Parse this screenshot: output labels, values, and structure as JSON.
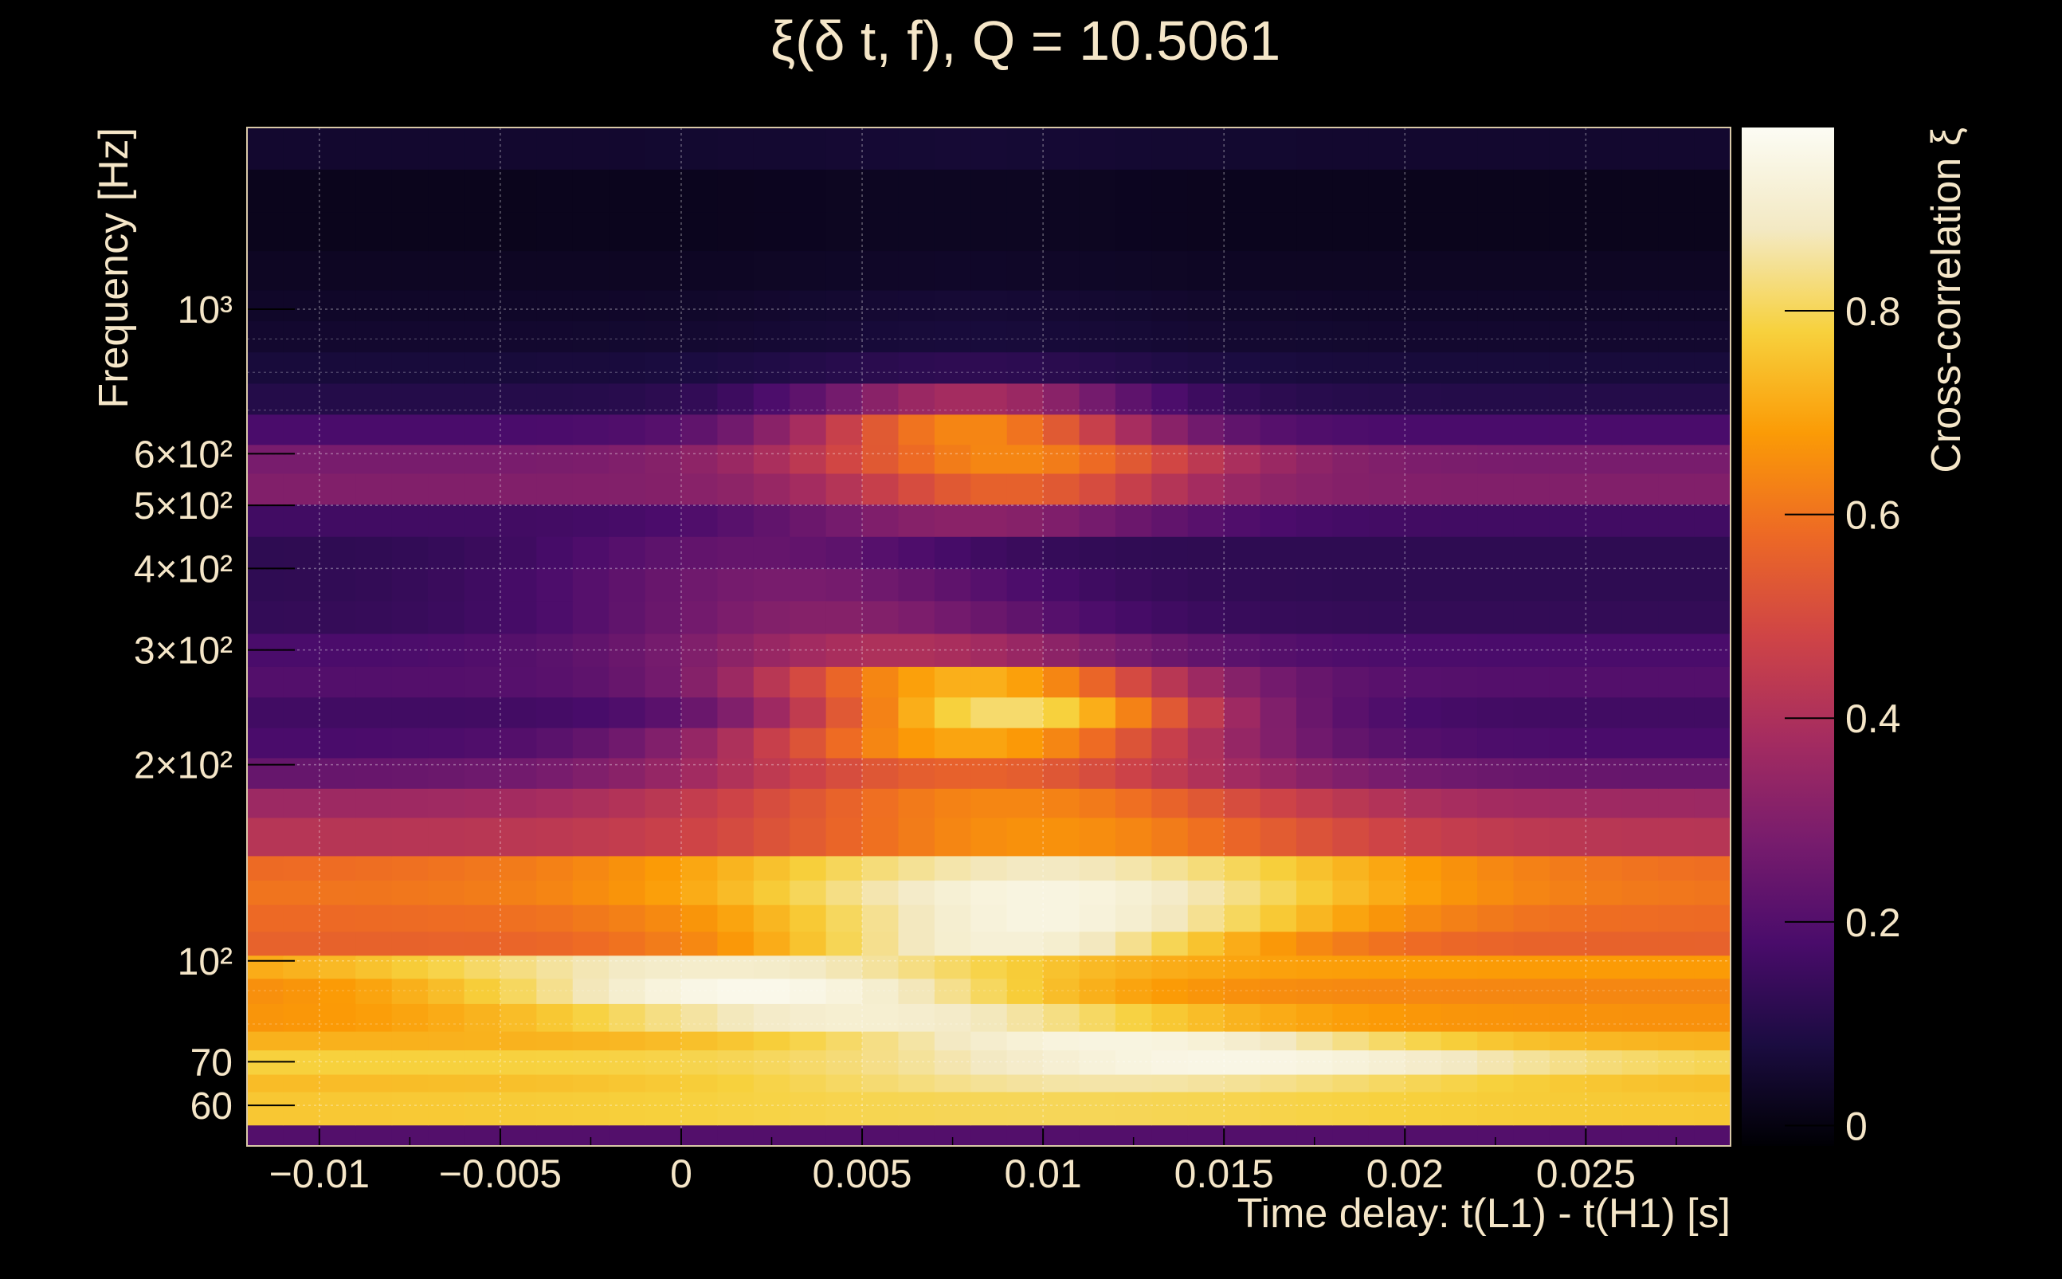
{
  "chart_data": {
    "type": "heatmap",
    "title": "ξ(δ t, f), Q = 10.5061",
    "xlabel": "Time delay: t(L1) - t(H1) [s]",
    "ylabel": "Frequency [Hz]",
    "colorbar_label": "Cross-correlation ξ",
    "xlim": [
      -0.012,
      0.029
    ],
    "ylim": [
      52,
      1900
    ],
    "y_scale": "log",
    "grid": true,
    "colormap": [
      "#000004",
      "#1b0c41",
      "#4a0c6b",
      "#781c6d",
      "#a52c60",
      "#cf4446",
      "#ed6925",
      "#fb9b06",
      "#f7d13d",
      "#f3e9c3",
      "#fcfcf4"
    ],
    "x_ticks": [
      {
        "value": -0.01,
        "label": "−0.01"
      },
      {
        "value": -0.005,
        "label": "−0.005"
      },
      {
        "value": 0,
        "label": "0"
      },
      {
        "value": 0.005,
        "label": "0.005"
      },
      {
        "value": 0.01,
        "label": "0.01"
      },
      {
        "value": 0.015,
        "label": "0.015"
      },
      {
        "value": 0.02,
        "label": "0.02"
      },
      {
        "value": 0.025,
        "label": "0.025"
      }
    ],
    "y_ticks": [
      {
        "value": 60,
        "label": "60"
      },
      {
        "value": 70,
        "label": "70"
      },
      {
        "value": 100,
        "label": "10²"
      },
      {
        "value": 200,
        "label": "2×10²"
      },
      {
        "value": 300,
        "label": "3×10²"
      },
      {
        "value": 400,
        "label": "4×10²"
      },
      {
        "value": 500,
        "label": "5×10²"
      },
      {
        "value": 600,
        "label": "6×10²"
      },
      {
        "value": 1000,
        "label": "10³"
      }
    ],
    "colorbar_ticks": [
      {
        "value": 0,
        "label": "0"
      },
      {
        "value": 0.2,
        "label": "0.2"
      },
      {
        "value": 0.4,
        "label": "0.4"
      },
      {
        "value": 0.6,
        "label": "0.6"
      },
      {
        "value": 0.8,
        "label": "0.8"
      }
    ],
    "z_range": [
      -0.02,
      0.98
    ],
    "frequency_bands_hz": [
      [
        52,
        56
      ],
      [
        56,
        63
      ],
      [
        63,
        67
      ],
      [
        67,
        73
      ],
      [
        73,
        78
      ],
      [
        78,
        86
      ],
      [
        86,
        94
      ],
      [
        94,
        102
      ],
      [
        102,
        111
      ],
      [
        111,
        122
      ],
      [
        122,
        133
      ],
      [
        133,
        145
      ],
      [
        145,
        166
      ],
      [
        166,
        184
      ],
      [
        184,
        205
      ],
      [
        205,
        228
      ],
      [
        228,
        254
      ],
      [
        254,
        283
      ],
      [
        283,
        318
      ],
      [
        318,
        357
      ],
      [
        357,
        400
      ],
      [
        400,
        448
      ],
      [
        448,
        502
      ],
      [
        502,
        560
      ],
      [
        560,
        620
      ],
      [
        620,
        690
      ],
      [
        690,
        770
      ],
      [
        770,
        860
      ],
      [
        860,
        960
      ],
      [
        960,
        1070
      ],
      [
        1070,
        1230
      ],
      [
        1230,
        1410
      ],
      [
        1410,
        1640
      ],
      [
        1640,
        1900
      ]
    ],
    "band_models": [
      {
        "base": 0.2,
        "peak": 0,
        "t0": 0.01,
        "width": 0.01
      },
      {
        "base": 0.76,
        "peak": 0.04,
        "t0": 0.01,
        "width": 0.012
      },
      {
        "base": 0.74,
        "peak": 0.12,
        "t0": 0.012,
        "width": 0.01
      },
      {
        "base": 0.78,
        "peak": 0.17,
        "t0": 0.015,
        "width": 0.009
      },
      {
        "base": 0.72,
        "peak": 0.22,
        "t0": 0.012,
        "width": 0.008
      },
      {
        "base": 0.66,
        "peak": 0.25,
        "t0": 0.005,
        "width": 0.009
      },
      {
        "base": 0.64,
        "peak": 0.32,
        "t0": 0.002,
        "width": 0.008
      },
      {
        "base": 0.68,
        "peak": 0.22,
        "t0": 0.001,
        "width": 0.009
      },
      {
        "base": 0.56,
        "peak": 0.36,
        "t0": 0.009,
        "width": 0.007
      },
      {
        "base": 0.58,
        "peak": 0.36,
        "t0": 0.01,
        "width": 0.008
      },
      {
        "base": 0.6,
        "peak": 0.34,
        "t0": 0.01,
        "width": 0.009
      },
      {
        "base": 0.58,
        "peak": 0.3,
        "t0": 0.01,
        "width": 0.01
      },
      {
        "base": 0.42,
        "peak": 0.24,
        "t0": 0.01,
        "width": 0.008
      },
      {
        "base": 0.36,
        "peak": 0.28,
        "t0": 0.009,
        "width": 0.008
      },
      {
        "base": 0.24,
        "peak": 0.32,
        "t0": 0.008,
        "width": 0.008
      },
      {
        "base": 0.18,
        "peak": 0.52,
        "t0": 0.008,
        "width": 0.007
      },
      {
        "base": 0.16,
        "peak": 0.66,
        "t0": 0.009,
        "width": 0.006
      },
      {
        "base": 0.2,
        "peak": 0.52,
        "t0": 0.008,
        "width": 0.006
      },
      {
        "base": 0.18,
        "peak": 0.22,
        "t0": 0.006,
        "width": 0.007
      },
      {
        "base": 0.13,
        "peak": 0.18,
        "t0": 0.004,
        "width": 0.007
      },
      {
        "base": 0.12,
        "peak": 0.16,
        "t0": 0.003,
        "width": 0.007
      },
      {
        "base": 0.12,
        "peak": 0.12,
        "t0": 0.002,
        "width": 0.006
      },
      {
        "base": 0.16,
        "peak": 0.16,
        "t0": 0.008,
        "width": 0.006
      },
      {
        "base": 0.3,
        "peak": 0.26,
        "t0": 0.009,
        "width": 0.005
      },
      {
        "base": 0.28,
        "peak": 0.36,
        "t0": 0.009,
        "width": 0.006
      },
      {
        "base": 0.18,
        "peak": 0.46,
        "t0": 0.008,
        "width": 0.005
      },
      {
        "base": 0.1,
        "peak": 0.28,
        "t0": 0.008,
        "width": 0.005
      },
      {
        "base": 0.07,
        "peak": 0.05,
        "t0": 0.008,
        "width": 0.006
      },
      {
        "base": 0.05,
        "peak": 0.02,
        "t0": 0.008,
        "width": 0.006
      },
      {
        "base": 0.04,
        "peak": 0.02,
        "t0": 0.008,
        "width": 0.006
      },
      {
        "base": 0.03,
        "peak": 0.01,
        "t0": 0.008,
        "width": 0.006
      },
      {
        "base": 0.02,
        "peak": 0.01,
        "t0": 0.008,
        "width": 0.006
      },
      {
        "base": 0.02,
        "peak": 0.01,
        "t0": 0.008,
        "width": 0.006
      },
      {
        "base": 0.05,
        "peak": 0.01,
        "t0": 0.008,
        "width": 0.006
      }
    ]
  }
}
